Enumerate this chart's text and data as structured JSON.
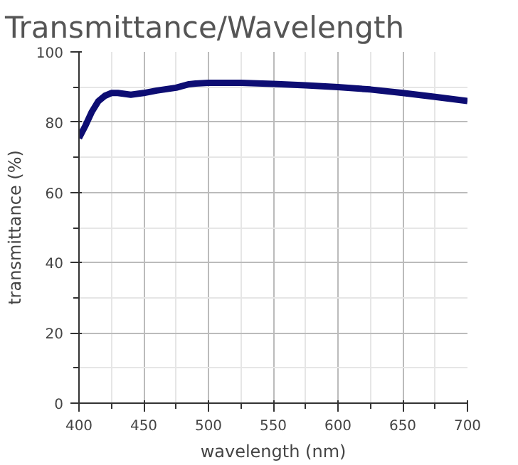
{
  "chart_data": {
    "type": "line",
    "title": "Transmittance/Wavelength",
    "xlabel": "wavelength (nm)",
    "ylabel": "transmittance (%)",
    "x": [
      400,
      405,
      410,
      415,
      420,
      425,
      430,
      440,
      450,
      460,
      475,
      480,
      485,
      490,
      500,
      525,
      550,
      575,
      600,
      625,
      650,
      675,
      700
    ],
    "series": [
      {
        "color": "#0d0d73",
        "values": [
          75.5,
          79,
          83,
          86,
          87.5,
          88.3,
          88.3,
          87.8,
          88.3,
          89,
          89.8,
          90.3,
          90.8,
          91,
          91.2,
          91.2,
          90.9,
          90.5,
          90,
          89.3,
          88.3,
          87.2,
          86
        ]
      }
    ],
    "xlim": [
      400,
      700
    ],
    "ylim": [
      0,
      100
    ],
    "xticks": [
      400,
      450,
      500,
      550,
      600,
      650,
      700
    ],
    "yticks": [
      0,
      20,
      40,
      60,
      80,
      100
    ],
    "grid": true,
    "marker": "none",
    "line_style": "solid"
  }
}
